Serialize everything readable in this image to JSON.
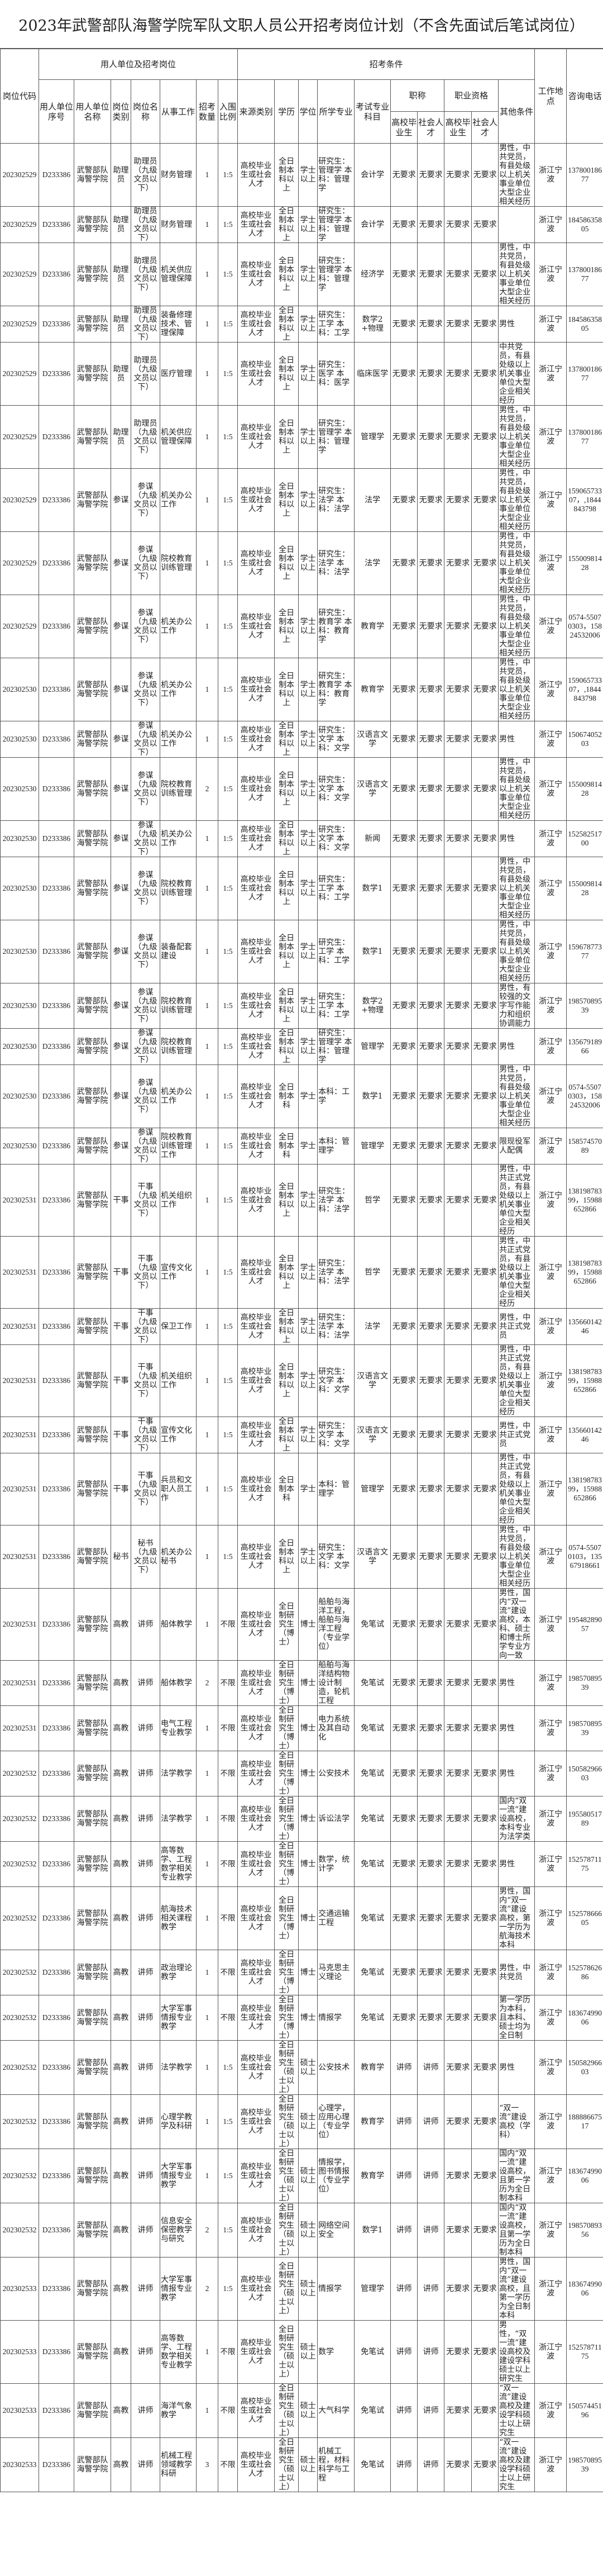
{
  "title": "2023年武警部队海警学院军队文职人员公开招考岗位计划（不含先面试后笔试岗位）",
  "headers": {
    "code": "岗位代码",
    "group_unit": "用人单位及招考岗位",
    "group_cond": "招考条件",
    "unit_no": "用人单位序号",
    "unit_name": "用人单位名称",
    "post_type": "岗位类别",
    "post_name": "岗位名称",
    "work": "从事工作",
    "count": "招考数量",
    "ratio": "入围比例",
    "source": "来源类别",
    "education": "学历",
    "degree": "学位",
    "major": "所学专业",
    "exam": "考试专业科目",
    "title": "职称",
    "qual": "职业资格",
    "grad": "高校毕业生",
    "social": "社会人才",
    "other": "其他条件",
    "location": "工作地点",
    "phone": "咨询电话"
  },
  "rows": [
    [
      "202302529",
      "D233386",
      "武警部队海警学院",
      "助理员",
      "助理员（九级文员以下）",
      "财务管理",
      "1",
      "1:5",
      "高校毕业生或社会人才",
      "全日制本科以上",
      "学士以上",
      "研究生：管理学 本科：管理学",
      "会计学",
      "无要求",
      "无要求",
      "无要求",
      "无要求",
      "男性，中共党员，有县处级以上机关事业单位大型企业相关经历",
      "浙江宁波",
      "13780018677"
    ],
    [
      "202302529",
      "D233386",
      "武警部队海警学院",
      "助理员",
      "助理员（九级文员以下）",
      "财务管理",
      "1",
      "1:5",
      "高校毕业生或社会人才",
      "全日制本科以上",
      "学士以上",
      "研究生：管理学 本科：管理学",
      "会计学",
      "无要求",
      "无要求",
      "无要求",
      "无要求",
      "",
      "浙江宁波",
      "18458635805"
    ],
    [
      "202302529",
      "D233386",
      "武警部队海警学院",
      "助理员",
      "助理员（九级文员以下）",
      "机关供应管理保障",
      "1",
      "1:5",
      "高校毕业生或社会人才",
      "全日制本科以上",
      "学士以上",
      "研究生：管理学 本科：管理学",
      "经济学",
      "无要求",
      "无要求",
      "无要求",
      "无要求",
      "男性，中共党员，有县处级以上机关事业单位大型企业相关经历",
      "浙江宁波",
      "13780018677"
    ],
    [
      "202302529",
      "D233386",
      "武警部队海警学院",
      "助理员",
      "助理员（九级文员以下）",
      "装备修理技术、管理保障",
      "1",
      "1:5",
      "高校毕业生或社会人才",
      "全日制本科以上",
      "学士以上",
      "研究生：工学 本科：工学",
      "数学2+物理",
      "无要求",
      "无要求",
      "无要求",
      "无要求",
      "男性",
      "浙江宁波",
      "18458635805"
    ],
    [
      "202302529",
      "D233386",
      "武警部队海警学院",
      "助理员",
      "助理员（九级文员以下）",
      "医疗管理",
      "1",
      "1:5",
      "高校毕业生或社会人才",
      "全日制本科以上",
      "学士以上",
      "研究生：医学 本科：医学",
      "临床医学",
      "无要求",
      "无要求",
      "无要求",
      "无要求",
      "中共党员，有县处级以上机关事业单位大型企业相关经历",
      "浙江宁波",
      "13780018677"
    ],
    [
      "202302529",
      "D233386",
      "武警部队海警学院",
      "助理员",
      "助理员（九级文员以下）",
      "机关供应管理保障",
      "1",
      "1:5",
      "高校毕业生或社会人才",
      "全日制本科以上",
      "学士以上",
      "研究生：管理学 本科：管理学",
      "管理学",
      "无要求",
      "无要求",
      "无要求",
      "无要求",
      "男性，中共党员，有县处级以上机关事业单位大型企业相关经历",
      "浙江宁波",
      "13780018677"
    ],
    [
      "202302529",
      "D233386",
      "武警部队海警学院",
      "参谋",
      "参谋（九级文员以下）",
      "机关办公工作",
      "1",
      "1:5",
      "高校毕业生或社会人才",
      "全日制本科以上",
      "学士以上",
      "研究生：法学 本科：法学",
      "法学",
      "无要求",
      "无要求",
      "无要求",
      "无要求",
      "男性，中共党员，有县处级以上机关事业单位大型企业相关经历",
      "浙江宁波",
      "15906573307，,1844843798"
    ],
    [
      "202302529",
      "D233386",
      "武警部队海警学院",
      "参谋",
      "参谋（九级文员以下）",
      "院校教育训练管理",
      "1",
      "1:5",
      "高校毕业生或社会人才",
      "全日制本科以上",
      "学士以上",
      "研究生：法学 本科：法学",
      "法学",
      "无要求",
      "无要求",
      "无要求",
      "无要求",
      "男性，中共党员，有县处级以上机关事业单位大型企业相关经历",
      "浙江宁波",
      "15500981428"
    ],
    [
      "202302529",
      "D233386",
      "武警部队海警学院",
      "参谋",
      "参谋（九级文员以下）",
      "机关办公工作",
      "1",
      "1:5",
      "高校毕业生或社会人才",
      "全日制本科以上",
      "学士以上",
      "研究生：教育学 本科：教育学",
      "教育学",
      "无要求",
      "无要求",
      "无要求",
      "无要求",
      "男性，中共党员，有县处级以上机关事业单位大型企业相关经历",
      "浙江宁波",
      "0574-55070303，15824532006"
    ],
    [
      "202302530",
      "D233386",
      "武警部队海警学院",
      "参谋",
      "参谋（九级文员以下）",
      "机关办公工作",
      "1",
      "1:5",
      "高校毕业生或社会人才",
      "全日制本科以上",
      "学士以上",
      "研究生：教育学 本科：教育学",
      "教育学",
      "无要求",
      "无要求",
      "无要求",
      "无要求",
      "男性，中共党员，有县处级以上机关事业单位大型企业相关经历",
      "浙江宁波",
      "15906573307，,1844843798"
    ],
    [
      "202302530",
      "D233386",
      "武警部队海警学院",
      "参谋",
      "参谋（九级文员以下）",
      "机关办公工作",
      "1",
      "1:5",
      "高校毕业生或社会人才",
      "全日制本科以上",
      "学士以上",
      "研究生：文学 本科：文学",
      "汉语言文学",
      "无要求",
      "无要求",
      "无要求",
      "无要求",
      "男性",
      "浙江宁波",
      "15067405203"
    ],
    [
      "202302530",
      "D233386",
      "武警部队海警学院",
      "参谋",
      "参谋（九级文员以下）",
      "院校教育训练管理",
      "2",
      "1:5",
      "高校毕业生或社会人才",
      "全日制本科以上",
      "学士以上",
      "研究生：文学 本科：文学",
      "汉语言文学",
      "无要求",
      "无要求",
      "无要求",
      "无要求",
      "男性，中共党员，有县处级以上机关事业单位大型企业相关经历",
      "浙江宁波",
      "15500981428"
    ],
    [
      "202302530",
      "D233386",
      "武警部队海警学院",
      "参谋",
      "参谋（九级文员以下）",
      "机关办公工作",
      "1",
      "1:5",
      "高校毕业生或社会人才",
      "全日制本科以上",
      "学士以上",
      "研究生：文学 本科：文学",
      "新闻",
      "无要求",
      "无要求",
      "无要求",
      "无要求",
      "男性",
      "浙江宁波",
      "15258251700"
    ],
    [
      "202302530",
      "D233386",
      "武警部队海警学院",
      "参谋",
      "参谋（九级文员以下）",
      "院校教育训练管理",
      "1",
      "1:5",
      "高校毕业生或社会人才",
      "全日制本科以上",
      "学士以上",
      "研究生：工学 本科：工学",
      "数学1",
      "无要求",
      "无要求",
      "无要求",
      "无要求",
      "男性，中共党员，有县处级以上机关事业单位大型企业相关经历",
      "浙江宁波",
      "15500981428"
    ],
    [
      "202302530",
      "D233386",
      "武警部队海警学院",
      "参谋",
      "参谋（九级文员以下）",
      "装备配套建设",
      "1",
      "1:5",
      "高校毕业生或社会人才",
      "全日制本科以上",
      "学士以上",
      "研究生：工学 本科：工学",
      "数学1",
      "无要求",
      "无要求",
      "无要求",
      "无要求",
      "男性，中共党员，有县处级以上机关事业单位大型企业相关经历",
      "浙江宁波",
      "15967877377"
    ],
    [
      "202302530",
      "D233386",
      "武警部队海警学院",
      "参谋",
      "参谋（九级文员以下）",
      "院校教育训练管理",
      "1",
      "1:5",
      "高校毕业生或社会人才",
      "全日制本科以上",
      "学士以上",
      "研究生：工学 本科：工学",
      "数学2+物理",
      "无要求",
      "无要求",
      "无要求",
      "无要求",
      "男性，有较强的文字写作能力和组织协调能力",
      "浙江宁波",
      "19857089539"
    ],
    [
      "202302530",
      "D233386",
      "武警部队海警学院",
      "参谋",
      "参谋（九级文员以下）",
      "院校教育训练管理",
      "1",
      "1:5",
      "高校毕业生或社会人才",
      "全日制本科以上",
      "学士以上",
      "研究生：管理学 本科：管理学",
      "管理学",
      "无要求",
      "无要求",
      "无要求",
      "无要求",
      "男性",
      "浙江宁波",
      "13567918966"
    ],
    [
      "202302530",
      "D233386",
      "武警部队海警学院",
      "参谋",
      "参谋（九级文员以下）",
      "机关办公工作",
      "1",
      "1:5",
      "高校毕业生或社会人才",
      "全日制本科",
      "学士",
      "本科：工学",
      "数学1",
      "无要求",
      "无要求",
      "无要求",
      "无要求",
      "男性，中共党员，有县处级以上机关事业单位大型企业相关经历",
      "浙江宁波",
      "0574-55070303，15824532006"
    ],
    [
      "202302530",
      "D233386",
      "武警部队海警学院",
      "参谋",
      "参谋（九级文员以下）",
      "院校教育训练管理工作",
      "1",
      "1:5",
      "高校毕业生或社会人才",
      "全日制本科",
      "学士",
      "本科：管理学",
      "管理学",
      "无要求",
      "无要求",
      "无要求",
      "无要求",
      "限现役军人配偶",
      "浙江宁波",
      "15857457089"
    ],
    [
      "202302531",
      "D233386",
      "武警部队海警学院",
      "干事",
      "干事（九级文员以下）",
      "机关组织工作",
      "1",
      "1:5",
      "高校毕业生或社会人才",
      "全日制本科以上",
      "学士以上",
      "研究生：法学 本科：法学",
      "哲学",
      "无要求",
      "无要求",
      "无要求",
      "无要求",
      "男性，中共正式党员，有县处级以上机关事业单位大型企业相关经历",
      "浙江宁波",
      "13819878399，15988652866"
    ],
    [
      "202302531",
      "D233386",
      "武警部队海警学院",
      "干事",
      "干事（九级文员以下）",
      "宣传文化工作",
      "1",
      "1:5",
      "高校毕业生或社会人才",
      "全日制本科以上",
      "学士以上",
      "研究生：法学 本科：法学",
      "哲学",
      "无要求",
      "无要求",
      "无要求",
      "无要求",
      "男性，中共正式党员，有县处级以上机关事业单位大型企业相关经历",
      "浙江宁波",
      "13819878399，15988652866"
    ],
    [
      "202302531",
      "D233386",
      "武警部队海警学院",
      "干事",
      "干事（九级文员以下）",
      "保卫工作",
      "1",
      "1:5",
      "高校毕业生或社会人才",
      "全日制本科以上",
      "学士以上",
      "研究生：法学 本科：法学",
      "法学",
      "无要求",
      "无要求",
      "无要求",
      "无要求",
      "男性，中共正式党员",
      "浙江宁波",
      "13566014246"
    ],
    [
      "202302531",
      "D233386",
      "武警部队海警学院",
      "干事",
      "干事（九级文员以下）",
      "机关组织工作",
      "1",
      "1:5",
      "高校毕业生或社会人才",
      "全日制本科以上",
      "学士以上",
      "研究生：文学 本科：文学",
      "汉语言文学",
      "无要求",
      "无要求",
      "无要求",
      "无要求",
      "男性，中共正式党员，有县处级以上机关事业单位大型企业相关经历",
      "浙江宁波",
      "13819878399，15988652866"
    ],
    [
      "202302531",
      "D233386",
      "武警部队海警学院",
      "干事",
      "干事（九级文员以下）",
      "宣传文化工作",
      "1",
      "1:5",
      "高校毕业生或社会人才",
      "全日制本科以上",
      "学士以上",
      "研究生：文学 本科：文学",
      "汉语言文学",
      "无要求",
      "无要求",
      "无要求",
      "无要求",
      "男性，中共正式党员",
      "浙江宁波",
      "13566014246"
    ],
    [
      "202302531",
      "D233386",
      "武警部队海警学院",
      "干事",
      "干事（九级文员以下）",
      "兵员和文职人员工作",
      "1",
      "1:5",
      "高校毕业生或社会人才",
      "全日制本科",
      "学士",
      "本科：管理学",
      "管理学",
      "无要求",
      "无要求",
      "无要求",
      "无要求",
      "男性，中共正式党员，有县处级以上机关事业单位大型企业相关经历",
      "浙江宁波",
      "13819878399，15988652866"
    ],
    [
      "202302531",
      "D233386",
      "武警部队海警学院",
      "秘书",
      "秘书（九级文员以下）",
      "机关办公秘书",
      "1",
      "1:5",
      "高校毕业生或社会人才",
      "全日制本科以上",
      "学士以上",
      "研究生：文学 本科：文学",
      "汉语言文学",
      "无要求",
      "无要求",
      "无要求",
      "无要求",
      "男性，中共党员，有县处级以上机关事业单位大型企业相关经历",
      "浙江宁波",
      "0574-55070103，13567918661"
    ],
    [
      "202302531",
      "D233386",
      "武警部队海警学院",
      "高教",
      "讲师",
      "船体教学",
      "1",
      "不限",
      "高校毕业生或社会人才",
      "全日制研究生（博士）",
      "博士",
      "船舶与海洋工程，船舶与海洋工程（专业学位）",
      "免笔试",
      "无要求",
      "无要求",
      "无要求",
      "无要求",
      "男性，国内“双一流”建设高校，本科、硕士和博士所学专业方向一致",
      "浙江宁波",
      "19548289057"
    ],
    [
      "202302531",
      "D233386",
      "武警部队海警学院",
      "高教",
      "讲师",
      "船体教学",
      "2",
      "不限",
      "高校毕业生或社会人才",
      "全日制研究生（博士）",
      "博士",
      "船舶与海洋结构物设计制造，轮机工程",
      "免笔试",
      "无要求",
      "无要求",
      "无要求",
      "无要求",
      "男性",
      "浙江宁波",
      "19857089539"
    ],
    [
      "202302531",
      "D233386",
      "武警部队海警学院",
      "高教",
      "讲师",
      "电气工程专业教学",
      "1",
      "不限",
      "高校毕业生或社会人才",
      "全日制研究生（博士）",
      "博士",
      "电力系统及其自动化",
      "免笔试",
      "无要求",
      "无要求",
      "无要求",
      "无要求",
      "男性",
      "浙江宁波",
      "19857089539"
    ],
    [
      "202302532",
      "D233386",
      "武警部队海警学院",
      "高教",
      "讲师",
      "法学教学",
      "1",
      "不限",
      "高校毕业生或社会人才",
      "全日制研究生（博士）",
      "博士",
      "公安技术",
      "免笔试",
      "无要求",
      "无要求",
      "无要求",
      "无要求",
      "男性",
      "浙江宁波",
      "15058296603"
    ],
    [
      "202302532",
      "D233386",
      "武警部队海警学院",
      "高教",
      "讲师",
      "法学教学",
      "1",
      "不限",
      "高校毕业生或社会人才",
      "全日制研究生（博士）",
      "博士",
      "诉讼法学",
      "免笔试",
      "无要求",
      "无要求",
      "无要求",
      "无要求",
      "国内“双一流”建设高校，本科专业为法学类",
      "浙江宁波",
      "19558051789"
    ],
    [
      "202302532",
      "D233386",
      "武警部队海警学院",
      "高教",
      "讲师",
      "高等数学、工程数学相关专业教学",
      "1",
      "不限",
      "高校毕业生或社会人才",
      "全日制研究生（博士）",
      "博士",
      "数学，统计学",
      "免笔试",
      "无要求",
      "无要求",
      "无要求",
      "无要求",
      "男性",
      "浙江宁波",
      "15257871175"
    ],
    [
      "202302532",
      "D233386",
      "武警部队海警学院",
      "高教",
      "讲师",
      "航海技术相关课程教学",
      "1",
      "不限",
      "高校毕业生或社会人才",
      "全日制研究生（博士）",
      "博士",
      "交通运输工程",
      "免笔试",
      "无要求",
      "无要求",
      "无要求",
      "无要求",
      "男性，国内“双一流”建设高校，第一学历为航海技术本科",
      "浙江宁波",
      "15257866605"
    ],
    [
      "202302532",
      "D233386",
      "武警部队海警学院",
      "高教",
      "讲师",
      "政治理论教学",
      "1",
      "不限",
      "高校毕业生或社会人才",
      "全日制研究生（博士）",
      "博士",
      "马克思主义理论",
      "免笔试",
      "无要求",
      "无要求",
      "无要求",
      "无要求",
      "男性，中共党员",
      "浙江宁波",
      "15257862686"
    ],
    [
      "202302532",
      "D233386",
      "武警部队海警学院",
      "高教",
      "讲师",
      "大学军事情报专业教学",
      "1",
      "不限",
      "高校毕业生或社会人才",
      "全日制研究生（博士）",
      "博士",
      "情报学",
      "免笔试",
      "无要求",
      "无要求",
      "无要求",
      "无要求",
      "第一学历为本科，且本科、硕士均为全日制",
      "浙江宁波",
      "18367499006"
    ],
    [
      "202302532",
      "D233386",
      "武警部队海警学院",
      "高教",
      "讲师",
      "法学教学",
      "1",
      "1:5",
      "高校毕业生或社会人才",
      "全日制研究生（硕士以上）",
      "硕士以上",
      "公安技术",
      "教育学",
      "讲师",
      "讲师",
      "无要求",
      "无要求",
      "男性",
      "浙江宁波",
      "15058296603"
    ],
    [
      "202302532",
      "D233386",
      "武警部队海警学院",
      "高教",
      "讲师",
      "心理学教学及科研",
      "1",
      "1:5",
      "高校毕业生或社会人才",
      "全日制研究生（硕士以上）",
      "硕士以上",
      "心理学，应用心理（专业学位）",
      "教育学",
      "讲师",
      "讲师",
      "无要求",
      "无要求",
      "“双一流”建设高校（学科）",
      "浙江宁波",
      "18888667517"
    ],
    [
      "202302532",
      "D233386",
      "武警部队海警学院",
      "高教",
      "讲师",
      "大学军事情报专业教学",
      "1",
      "1:5",
      "高校毕业生或社会人才",
      "全日制研究生（硕士以上）",
      "硕士以上",
      "情报学，图书情报（专业学位）",
      "教育学",
      "讲师",
      "讲师",
      "无要求",
      "无要求",
      "国内“双一流”建设高校，且第一学历为全日制本科",
      "浙江宁波",
      "18367499006"
    ],
    [
      "202302532",
      "D233386",
      "武警部队海警学院",
      "高教",
      "讲师",
      "信息安全保密教学与研究",
      "2",
      "1:5",
      "高校毕业生或社会人才",
      "全日制研究生（硕士以上）",
      "硕士以上",
      "网络空间安全",
      "数学1",
      "讲师",
      "讲师",
      "无要求",
      "无要求",
      "国内“双一流”建设高校，且第一学历为全日制本科",
      "浙江宁波",
      "19857089356"
    ],
    [
      "202302533",
      "D233386",
      "武警部队海警学院",
      "高教",
      "讲师",
      "大学军事情报专业教学",
      "2",
      "1:5",
      "高校毕业生或社会人才",
      "全日制研究生（硕士以上）",
      "硕士以上",
      "情报学",
      "管理学",
      "讲师",
      "讲师",
      "无要求",
      "无要求",
      "男性，国内“双一流”建设高校，且第一学历为全日制本科",
      "浙江宁波",
      "18367499006"
    ],
    [
      "202302533",
      "D233386",
      "武警部队海警学院",
      "高教",
      "讲师",
      "高等数学、工程数学相关专业教学",
      "1",
      "不限",
      "高校毕业生或社会人才",
      "全日制研究生（硕士以上）",
      "硕士以上",
      "数学",
      "免笔试",
      "讲师",
      "讲师",
      "无要求",
      "无要求",
      "男性，“双一流”建设高校及建设学科硕士以上研究生",
      "浙江宁波",
      "15257871175"
    ],
    [
      "202302533",
      "D233386",
      "武警部队海警学院",
      "高教",
      "讲师",
      "海洋气象教学",
      "1",
      "不限",
      "高校毕业生或社会人才",
      "全日制研究生（硕士以上）",
      "硕士以上",
      "大气科学",
      "免笔试",
      "讲师",
      "讲师",
      "无要求",
      "无要求",
      "“双一流”建设高校及建设学科硕士以上研究生",
      "浙江宁波",
      "15057445196"
    ],
    [
      "202302533",
      "D233386",
      "武警部队海警学院",
      "高教",
      "讲师",
      "机械工程领域教学科研",
      "3",
      "不限",
      "高校毕业生或社会人才",
      "全日制研究生（硕士以上）",
      "硕士以上",
      "机械工程，材料科学与工程",
      "免笔试",
      "讲师",
      "讲师",
      "无要求",
      "无要求",
      "“双一流”建设高校及建设学科硕士以上研究生",
      "浙江宁波",
      "19857089539"
    ]
  ]
}
